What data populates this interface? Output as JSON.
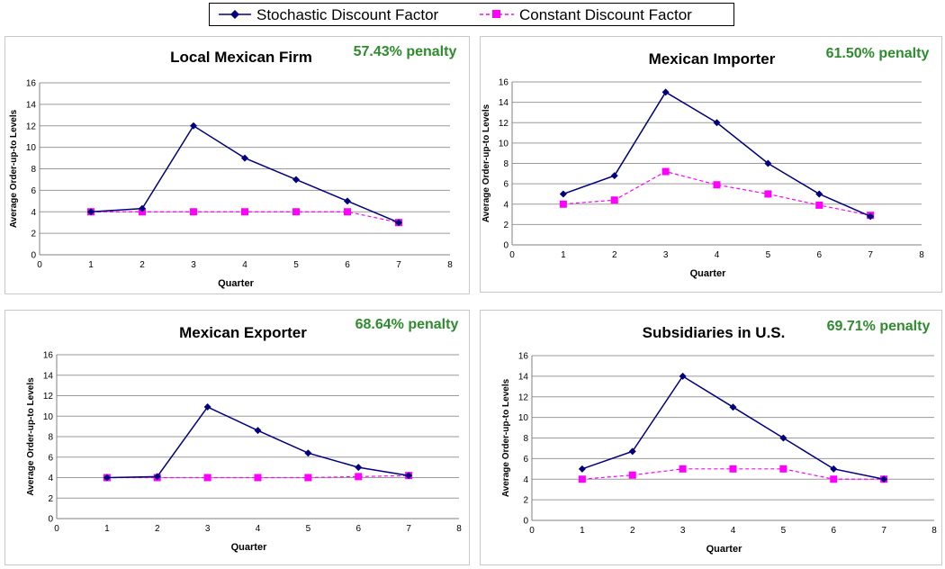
{
  "legend": {
    "items": [
      {
        "label": "Stochastic Discount Factor",
        "color": "#00007f",
        "marker": "diamond",
        "line": "solid"
      },
      {
        "label": "Constant Discount Factor",
        "color": "#ff00ff",
        "marker": "square",
        "line": "dashed"
      }
    ]
  },
  "colors": {
    "stochastic": "#00007f",
    "constant": "#ff00ff",
    "penalty": "#2e8b2e",
    "grid": "#9a9a9a"
  },
  "chart_data": [
    {
      "type": "line",
      "title": "Local Mexican Firm",
      "penalty": "57.43% penalty",
      "xlabel": "Quarter",
      "ylabel": "Average Order-up-to Levels",
      "xlim": [
        0,
        8
      ],
      "ylim": [
        0,
        16
      ],
      "xticks": [
        "0",
        "1",
        "2",
        "3",
        "4",
        "5",
        "6",
        "7",
        "8"
      ],
      "yticks": [
        "0",
        "2",
        "4",
        "6",
        "8",
        "10",
        "12",
        "14",
        "16"
      ],
      "grid": true,
      "x": [
        1,
        2,
        3,
        4,
        5,
        6,
        7
      ],
      "series": [
        {
          "name": "Stochastic Discount Factor",
          "values": [
            4,
            4.3,
            12,
            9,
            7,
            5,
            3
          ]
        },
        {
          "name": "Constant Discount Factor",
          "values": [
            4,
            4,
            4,
            4,
            4,
            4,
            3
          ]
        }
      ]
    },
    {
      "type": "line",
      "title": "Mexican Importer",
      "penalty": "61.50% penalty",
      "xlabel": "Quarter",
      "ylabel": "Average Order-up-to Levels",
      "xlim": [
        0,
        8
      ],
      "ylim": [
        0,
        16
      ],
      "xticks": [
        "0",
        "1",
        "2",
        "3",
        "4",
        "5",
        "6",
        "7",
        "8"
      ],
      "yticks": [
        "0",
        "2",
        "4",
        "6",
        "8",
        "10",
        "12",
        "14",
        "16"
      ],
      "grid": true,
      "x": [
        1,
        2,
        3,
        4,
        5,
        6,
        7
      ],
      "series": [
        {
          "name": "Stochastic Discount Factor",
          "values": [
            5,
            6.8,
            15,
            12,
            8,
            5,
            2.8
          ]
        },
        {
          "name": "Constant Discount Factor",
          "values": [
            4,
            4.4,
            7.2,
            5.9,
            5,
            3.9,
            2.9
          ]
        }
      ]
    },
    {
      "type": "line",
      "title": "Mexican Exporter",
      "penalty": "68.64% penalty",
      "xlabel": "Quarter",
      "ylabel": "Average Order-up-to Levels",
      "xlim": [
        0,
        8
      ],
      "ylim": [
        0,
        16
      ],
      "xticks": [
        "0",
        "1",
        "2",
        "3",
        "4",
        "5",
        "6",
        "7",
        "8"
      ],
      "yticks": [
        "0",
        "2",
        "4",
        "6",
        "8",
        "10",
        "12",
        "14",
        "16"
      ],
      "grid": true,
      "x": [
        1,
        2,
        3,
        4,
        5,
        6,
        7
      ],
      "series": [
        {
          "name": "Stochastic Discount Factor",
          "values": [
            4,
            4.1,
            10.9,
            8.6,
            6.4,
            5,
            4.2
          ]
        },
        {
          "name": "Constant Discount Factor",
          "values": [
            4,
            4,
            4,
            4,
            4,
            4.1,
            4.2
          ]
        }
      ]
    },
    {
      "type": "line",
      "title": "Subsidiaries in U.S.",
      "penalty": "69.71% penalty",
      "xlabel": "Quarter",
      "ylabel": "Average Order-up-to Levels",
      "xlim": [
        0,
        8
      ],
      "ylim": [
        0,
        16
      ],
      "xticks": [
        "0",
        "1",
        "2",
        "3",
        "4",
        "5",
        "6",
        "7",
        "8"
      ],
      "yticks": [
        "0",
        "2",
        "4",
        "6",
        "8",
        "10",
        "12",
        "14",
        "16"
      ],
      "grid": true,
      "x": [
        1,
        2,
        3,
        4,
        5,
        6,
        7
      ],
      "series": [
        {
          "name": "Stochastic Discount Factor",
          "values": [
            5,
            6.7,
            14,
            11,
            8,
            5,
            4
          ]
        },
        {
          "name": "Constant Discount Factor",
          "values": [
            4,
            4.4,
            5,
            5,
            5,
            4,
            4
          ]
        }
      ]
    }
  ]
}
